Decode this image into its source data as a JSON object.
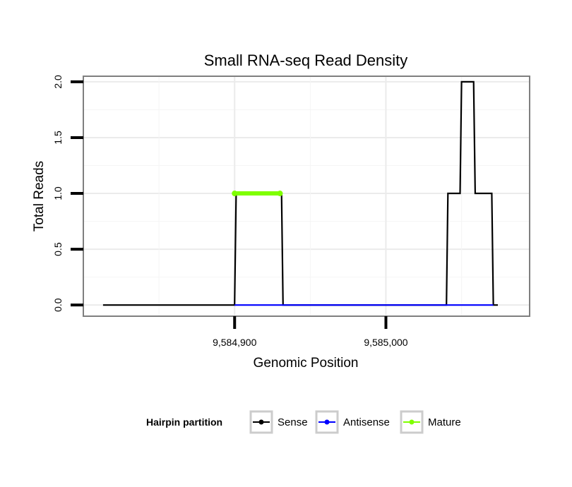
{
  "chart_data": {
    "type": "line",
    "title": "Small RNA-seq Read Density",
    "xlabel": "Genomic Position",
    "ylabel": "Total Reads",
    "xlim": [
      9584800,
      9585095
    ],
    "ylim": [
      -0.1,
      2.05
    ],
    "x_ticks": [
      {
        "value": 9584900,
        "label": "9,584,900"
      },
      {
        "value": 9585000,
        "label": "9,585,000"
      }
    ],
    "y_ticks": [
      {
        "value": 0.0,
        "label": "0.0"
      },
      {
        "value": 0.5,
        "label": "0.5"
      },
      {
        "value": 1.0,
        "label": "1.0"
      },
      {
        "value": 1.5,
        "label": "1.5"
      },
      {
        "value": 2.0,
        "label": "2.0"
      }
    ],
    "grid": true,
    "legend": {
      "title": "Hairpin partition",
      "position": "bottom",
      "entries": [
        {
          "label": "Sense",
          "color": "#000000"
        },
        {
          "label": "Antisense",
          "color": "#0000ff"
        },
        {
          "label": "Mature",
          "color": "#7fff00"
        }
      ]
    },
    "series": [
      {
        "name": "Sense",
        "color": "#000000",
        "x": [
          9584813,
          9584900,
          9584901,
          9584931,
          9584932,
          9585040,
          9585041,
          9585049,
          9585050,
          9585058,
          9585059,
          9585070,
          9585071,
          9585074
        ],
        "y": [
          0,
          0,
          1,
          1,
          0,
          0,
          1,
          1,
          2,
          2,
          1,
          1,
          0,
          0
        ]
      },
      {
        "name": "Antisense",
        "color": "#0000ff",
        "x": [
          9584900,
          9584932,
          9585041,
          9585071
        ],
        "y": [
          0,
          0,
          0,
          0
        ]
      },
      {
        "name": "Mature",
        "color": "#7fff00",
        "x": [
          9584900,
          9584930
        ],
        "y": [
          1,
          1
        ]
      }
    ]
  }
}
